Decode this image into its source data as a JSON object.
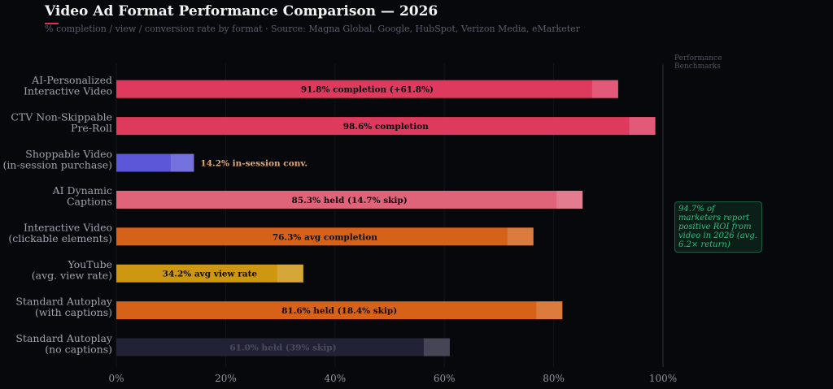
{
  "header": {
    "title": "Video Ad Format Performance Comparison — 2026",
    "subtitle": "% completion / view / conversion rate by format  ·  Source: Magna Global, Google, HubSpot, Verizon Media, eMarketer"
  },
  "benchmark_label": "Performance Benchmarks",
  "note": "94.7% of marketers report positive ROI from video in 2026 (avg. 6.2× return)",
  "chart_data": {
    "type": "bar",
    "orientation": "horizontal",
    "title": "Video Ad Format Performance Comparison — 2026",
    "xlim": [
      0,
      100
    ],
    "xticks": [
      "0%",
      "20%",
      "40%",
      "60%",
      "80%",
      "100%"
    ],
    "grid": true,
    "categories": [
      [
        "AI-Personalized",
        "Interactive Video"
      ],
      [
        "CTV Non-Skippable",
        "Pre-Roll"
      ],
      [
        "Shoppable Video",
        "(in-session purchase)"
      ],
      [
        "AI Dynamic",
        "Captions"
      ],
      [
        "Interactive Video",
        "(clickable elements)"
      ],
      [
        "YouTube",
        "(avg. view rate)"
      ],
      [
        "Standard Autoplay",
        "(with captions)"
      ],
      [
        "Standard Autoplay",
        "(no captions)"
      ]
    ],
    "values": [
      91.8,
      98.6,
      14.2,
      85.3,
      76.3,
      34.2,
      81.6,
      61.0
    ],
    "labels": [
      "91.8% completion (+61.8%)",
      "98.6% completion",
      "14.2% in-session conv.",
      "85.3% held (14.7% skip)",
      "76.3% avg completion",
      "34.2% avg view rate",
      "81.6% held (18.4% skip)",
      "61.0% held (39% skip)"
    ],
    "colors": [
      "#de3a5e",
      "#de3a5e",
      "#5b57d8",
      "#df647a",
      "#d6621a",
      "#cd9712",
      "#d6621a",
      "#222236"
    ],
    "label_colors": [
      "#0d0d12",
      "#0d0d12",
      "#e6a86a",
      "#0d0d12",
      "#0d0d12",
      "#0d0d12",
      "#0d0d12",
      "#4a4c5c"
    ],
    "label_position": [
      "inside",
      "inside",
      "outside",
      "inside",
      "inside",
      "inside",
      "inside",
      "inside"
    ],
    "reference_line": {
      "value": 100
    }
  }
}
